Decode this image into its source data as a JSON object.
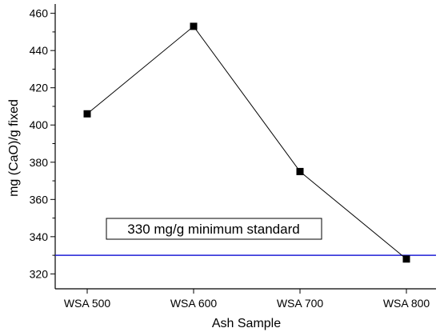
{
  "chart_data": {
    "type": "line",
    "categories": [
      "WSA 500",
      "WSA 600",
      "WSA 700",
      "WSA 800"
    ],
    "series": [
      {
        "values": [
          406,
          453,
          375,
          328
        ],
        "marker": "square",
        "line_color": "#000000"
      }
    ],
    "reference_line": {
      "value": 330,
      "color": "#1f1fd6"
    },
    "annotation": "330 mg/g minimum standard",
    "xlabel": "Ash Sample",
    "ylabel": "mg (CaO)/g fixed",
    "ylim": [
      312,
      465
    ],
    "yticks": [
      320,
      340,
      360,
      380,
      400,
      420,
      440,
      460
    ],
    "ytick_labels": [
      "320",
      "340",
      "360",
      "380",
      "400",
      "420",
      "440",
      "460"
    ],
    "ytick_minor_step": 10,
    "grid": false
  }
}
